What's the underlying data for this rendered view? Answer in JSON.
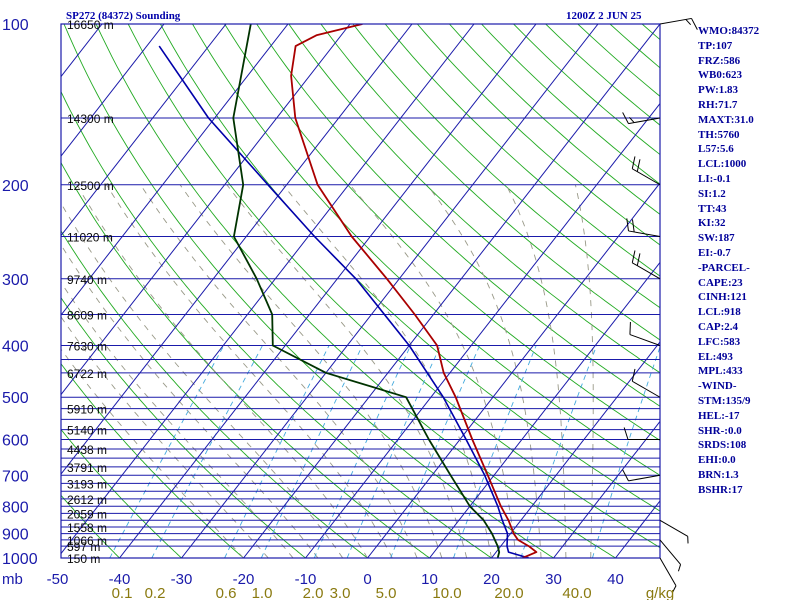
{
  "header": {
    "title_left": "SP272 (84372) Sounding",
    "title_right": "1200Z  2 JUN 25"
  },
  "indices": [
    "WMO:84372",
    "TP:107",
    "FRZ:586",
    "WB0:623",
    "PW:1.83",
    "RH:71.7",
    "MAXT:31.0",
    "TH:5760",
    "L57:5.6",
    "LCL:1000",
    "LI:-0.1",
    "SI:1.2",
    "TT:43",
    "KI:32",
    "SW:187",
    "EI:-0.7",
    "-PARCEL-",
    "CAPE:23",
    "CINH:121",
    "LCL:918",
    "CAP:2.4",
    "LFC:583",
    "EL:493",
    "MPL:433",
    "-WIND-",
    "STM:135/9",
    "HEL:-17",
    "SHR-:0.0",
    "SRDS:108",
    "EHI:0.0",
    "BRN:1.3",
    "BSHR:17"
  ],
  "colors": {
    "isobar": "#1a1aaa",
    "isotherm": "#1a1aaa",
    "dry_adiabat": "#22aa22",
    "moist_adiabat": "#999988",
    "mixing_ratio": "#44aadd",
    "temperature": "#aa0000",
    "dewpoint": "#003300",
    "parcel": "#0000aa",
    "wind": "#000000"
  },
  "chart_data": {
    "type": "skew-t log-p sounding",
    "title": "SP272 (84372) Sounding",
    "valid_time": "1200Z  2 JUN 25",
    "pressure_unit": "mb",
    "ylim": [
      1000,
      100
    ],
    "xlim": [
      -50,
      40
    ],
    "temperature_ticks": [
      -50,
      -40,
      -30,
      -20,
      -10,
      0,
      10,
      20,
      30,
      40
    ],
    "mixing_ratio_unit": "g/kg",
    "mixing_ratio_ticks": [
      "0.1",
      "0.2",
      "0.6",
      "1.0",
      "2.0",
      "3.0",
      "5.0",
      "10.0",
      "20.0",
      "40.0"
    ],
    "levels": [
      {
        "p": 1000,
        "h": "150 m"
      },
      {
        "p": 950,
        "h": "597 m"
      },
      {
        "p": 925,
        "h": "1066 m"
      },
      {
        "p": 900,
        "h": ""
      },
      {
        "p": 875,
        "h": "1558 m"
      },
      {
        "p": 850,
        "h": ""
      },
      {
        "p": 825,
        "h": "2059 m"
      },
      {
        "p": 800,
        "h": ""
      },
      {
        "p": 775,
        "h": "2612 m"
      },
      {
        "p": 750,
        "h": ""
      },
      {
        "p": 725,
        "h": "3193 m"
      },
      {
        "p": 700,
        "h": ""
      },
      {
        "p": 675,
        "h": "3791 m"
      },
      {
        "p": 650,
        "h": ""
      },
      {
        "p": 625,
        "h": "4438 m"
      },
      {
        "p": 600,
        "h": ""
      },
      {
        "p": 575,
        "h": "5140 m"
      },
      {
        "p": 550,
        "h": ""
      },
      {
        "p": 525,
        "h": "5910 m"
      },
      {
        "p": 500,
        "h": ""
      },
      {
        "p": 450,
        "h": "6722 m"
      },
      {
        "p": 425,
        "h": ""
      },
      {
        "p": 400,
        "h": "7630 m"
      },
      {
        "p": 350,
        "h": "8609 m"
      },
      {
        "p": 300,
        "h": "9740 m"
      },
      {
        "p": 250,
        "h": "11020 m"
      },
      {
        "p": 200,
        "h": "12500 m"
      },
      {
        "p": 150,
        "h": "14300 m"
      },
      {
        "p": 100,
        "h": "16650 m"
      }
    ],
    "pressure_labels": [
      100,
      200,
      300,
      400,
      500,
      600,
      700,
      800,
      900,
      1000
    ],
    "temperature_profile": [
      {
        "p": 1000,
        "t": 25.0
      },
      {
        "p": 975,
        "t": 26.5
      },
      {
        "p": 950,
        "t": 24.5
      },
      {
        "p": 925,
        "t": 22.0
      },
      {
        "p": 900,
        "t": 20.5
      },
      {
        "p": 850,
        "t": 18.0
      },
      {
        "p": 800,
        "t": 15.0
      },
      {
        "p": 700,
        "t": 9.0
      },
      {
        "p": 600,
        "t": 2.0
      },
      {
        "p": 500,
        "t": -6.0
      },
      {
        "p": 450,
        "t": -11.0
      },
      {
        "p": 400,
        "t": -15.5
      },
      {
        "p": 350,
        "t": -23.0
      },
      {
        "p": 300,
        "t": -32.0
      },
      {
        "p": 250,
        "t": -43.0
      },
      {
        "p": 200,
        "t": -55.0
      },
      {
        "p": 150,
        "t": -67.0
      },
      {
        "p": 125,
        "t": -73.0
      },
      {
        "p": 110,
        "t": -76.0
      },
      {
        "p": 105,
        "t": -74.0
      },
      {
        "p": 100,
        "t": -68.0
      }
    ],
    "dewpoint_profile": [
      {
        "p": 1000,
        "t": 21.0
      },
      {
        "p": 975,
        "t": 20.5
      },
      {
        "p": 950,
        "t": 19.5
      },
      {
        "p": 900,
        "t": 17.0
      },
      {
        "p": 850,
        "t": 14.0
      },
      {
        "p": 800,
        "t": 10.0
      },
      {
        "p": 700,
        "t": 3.0
      },
      {
        "p": 600,
        "t": -5.0
      },
      {
        "p": 500,
        "t": -14.0
      },
      {
        "p": 450,
        "t": -30.0
      },
      {
        "p": 400,
        "t": -42.0
      },
      {
        "p": 350,
        "t": -46.0
      },
      {
        "p": 300,
        "t": -53.0
      },
      {
        "p": 250,
        "t": -62.0
      },
      {
        "p": 200,
        "t": -67.0
      },
      {
        "p": 150,
        "t": -77.0
      },
      {
        "p": 100,
        "t": -86.0
      }
    ],
    "parcel_profile": [
      {
        "p": 1000,
        "t": 26.0
      },
      {
        "p": 975,
        "t": 22.0
      },
      {
        "p": 950,
        "t": 21.0
      },
      {
        "p": 900,
        "t": 19.5
      },
      {
        "p": 850,
        "t": 17.0
      },
      {
        "p": 800,
        "t": 14.5
      },
      {
        "p": 700,
        "t": 8.5
      },
      {
        "p": 600,
        "t": 1.0
      },
      {
        "p": 500,
        "t": -8.0
      },
      {
        "p": 400,
        "t": -20.0
      },
      {
        "p": 300,
        "t": -37.0
      },
      {
        "p": 250,
        "t": -49.0
      },
      {
        "p": 200,
        "t": -63.0
      },
      {
        "p": 150,
        "t": -81.0
      },
      {
        "p": 110,
        "t": -98.0
      }
    ],
    "wind_barbs": [
      {
        "p": 1000,
        "dir": 150,
        "spd": 5
      },
      {
        "p": 925,
        "dir": 140,
        "spd": 5
      },
      {
        "p": 850,
        "dir": 120,
        "spd": 5
      },
      {
        "p": 700,
        "dir": 260,
        "spd": 10
      },
      {
        "p": 600,
        "dir": 270,
        "spd": 10
      },
      {
        "p": 500,
        "dir": 300,
        "spd": 10
      },
      {
        "p": 400,
        "dir": 290,
        "spd": 10
      },
      {
        "p": 300,
        "dir": 300,
        "spd": 20
      },
      {
        "p": 250,
        "dir": 280,
        "spd": 20
      },
      {
        "p": 200,
        "dir": 300,
        "spd": 20
      },
      {
        "p": 150,
        "dir": 260,
        "spd": 15
      },
      {
        "p": 100,
        "dir": 80,
        "spd": 15
      }
    ],
    "grid": true
  }
}
